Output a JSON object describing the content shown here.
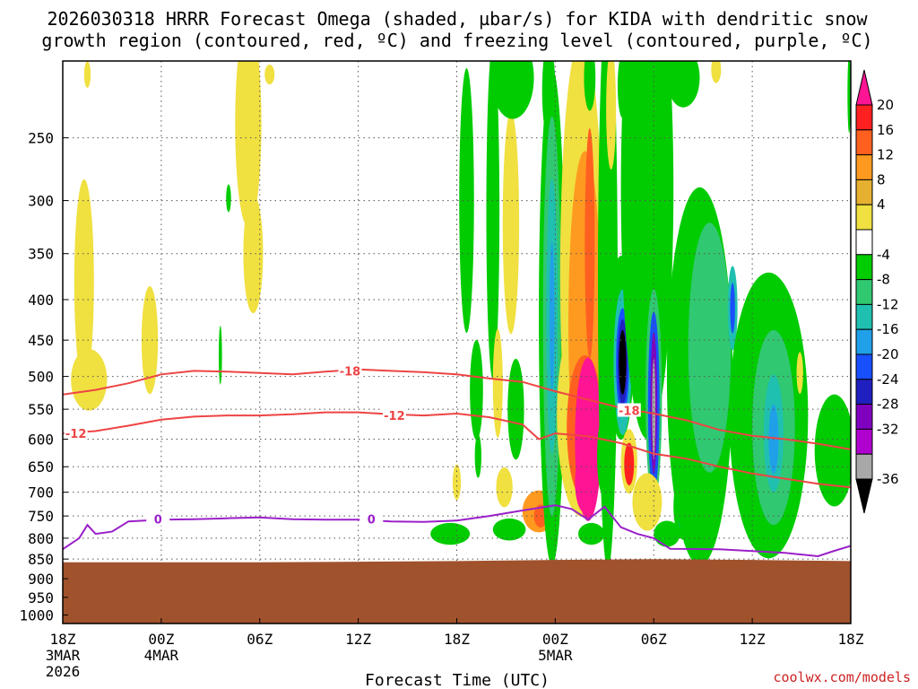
{
  "chart_data": {
    "type": "heatmap",
    "title_line1": "2026030318 HRRR Forecast Omega (shaded, µbar/s) for KIDA with dendritic snow",
    "title_line2": "growth region (contoured, red, ºC) and freezing level (contoured, purple, ºC)",
    "xlabel": "Forecast Time (UTC)",
    "credit": "coolwx.com/models",
    "x_ticks": [
      {
        "hour": 0,
        "label": "18Z",
        "sub1": "3MAR",
        "sub2": "2026"
      },
      {
        "hour": 6,
        "label": "00Z",
        "sub1": "4MAR",
        "sub2": ""
      },
      {
        "hour": 12,
        "label": "06Z",
        "sub1": "",
        "sub2": ""
      },
      {
        "hour": 18,
        "label": "12Z",
        "sub1": "",
        "sub2": ""
      },
      {
        "hour": 24,
        "label": "18Z",
        "sub1": "",
        "sub2": ""
      },
      {
        "hour": 30,
        "label": "00Z",
        "sub1": "5MAR",
        "sub2": ""
      },
      {
        "hour": 36,
        "label": "06Z",
        "sub1": "",
        "sub2": ""
      },
      {
        "hour": 42,
        "label": "12Z",
        "sub1": "",
        "sub2": ""
      },
      {
        "hour": 48,
        "label": "18Z",
        "sub1": "",
        "sub2": ""
      }
    ],
    "x_range_hours": [
      0,
      48
    ],
    "y_ticks": [
      "250",
      "300",
      "350",
      "400",
      "450",
      "500",
      "550",
      "600",
      "650",
      "700",
      "750",
      "800",
      "850",
      "900",
      "950",
      "1000"
    ],
    "y_range_hpa": [
      200,
      1025
    ],
    "y_scale": "log-pressure",
    "grid": true,
    "colorbar": {
      "labels": [
        "20",
        "16",
        "12",
        "8",
        "4",
        "-4",
        "-8",
        "-12",
        "-16",
        "-20",
        "-24",
        "-28",
        "-32",
        "-36"
      ],
      "colors": [
        "#ff1493",
        "#ff2020",
        "#ff6020",
        "#ff9a20",
        "#e6b030",
        "#f0e040",
        "#ffffff",
        "#00cc00",
        "#30c870",
        "#20c0b0",
        "#20a0e8",
        "#1850ff",
        "#2020c0",
        "#8000c0",
        "#b000d0",
        "#a8a8a8",
        "#000000"
      ]
    },
    "series": [
      {
        "name": "-18",
        "color": "#ee4444",
        "points": [
          [
            0,
            527
          ],
          [
            2,
            520
          ],
          [
            4,
            510
          ],
          [
            6,
            497
          ],
          [
            8,
            492
          ],
          [
            10,
            493
          ],
          [
            12,
            495
          ],
          [
            14,
            497
          ],
          [
            16,
            493
          ],
          [
            18,
            490
          ],
          [
            20,
            492
          ],
          [
            22,
            494
          ],
          [
            24,
            497
          ],
          [
            26,
            503
          ],
          [
            28,
            508
          ],
          [
            30,
            522
          ],
          [
            32,
            535
          ],
          [
            34,
            548
          ],
          [
            36,
            557
          ],
          [
            38,
            568
          ],
          [
            40,
            584
          ],
          [
            42,
            594
          ],
          [
            44,
            600
          ],
          [
            46,
            608
          ],
          [
            48,
            618
          ]
        ]
      },
      {
        "name": "-12",
        "color": "#ee4444",
        "points": [
          [
            0,
            590
          ],
          [
            2,
            586
          ],
          [
            4,
            577
          ],
          [
            6,
            567
          ],
          [
            8,
            562
          ],
          [
            10,
            560
          ],
          [
            12,
            560
          ],
          [
            14,
            558
          ],
          [
            16,
            555
          ],
          [
            18,
            555
          ],
          [
            20,
            558
          ],
          [
            22,
            560
          ],
          [
            24,
            557
          ],
          [
            26,
            563
          ],
          [
            28,
            575
          ],
          [
            29,
            600
          ],
          [
            30,
            590
          ],
          [
            32,
            595
          ],
          [
            34,
            607
          ],
          [
            36,
            626
          ],
          [
            38,
            635
          ],
          [
            40,
            650
          ],
          [
            42,
            663
          ],
          [
            44,
            673
          ],
          [
            46,
            683
          ],
          [
            48,
            690
          ]
        ]
      },
      {
        "name": "0",
        "color": "#9a20c8",
        "points": [
          [
            0,
            826
          ],
          [
            1,
            800
          ],
          [
            1.5,
            770
          ],
          [
            2,
            790
          ],
          [
            3,
            785
          ],
          [
            4,
            762
          ],
          [
            6,
            758
          ],
          [
            8,
            757
          ],
          [
            10,
            755
          ],
          [
            12,
            753
          ],
          [
            14,
            757
          ],
          [
            16,
            758
          ],
          [
            18,
            758
          ],
          [
            20,
            762
          ],
          [
            22,
            763
          ],
          [
            24,
            760
          ],
          [
            26,
            750
          ],
          [
            28,
            738
          ],
          [
            30,
            727
          ],
          [
            31,
            735
          ],
          [
            32,
            758
          ],
          [
            33,
            730
          ],
          [
            34,
            775
          ],
          [
            35,
            790
          ],
          [
            36,
            800
          ],
          [
            37,
            825
          ],
          [
            40,
            826
          ],
          [
            44,
            835
          ],
          [
            46,
            843
          ],
          [
            47,
            830
          ],
          [
            48,
            818
          ]
        ]
      }
    ],
    "series_labels": [
      {
        "text": "-18",
        "hour": 17.5,
        "hpa": 492
      },
      {
        "text": "-18",
        "hour": 34.5,
        "hpa": 552
      },
      {
        "text": "-12",
        "hour": 0.8,
        "hpa": 590
      },
      {
        "text": "-12",
        "hour": 20.2,
        "hpa": 560
      },
      {
        "text": "0",
        "hour": 5.8,
        "hpa": 757
      },
      {
        "text": "0",
        "hour": 18.8,
        "hpa": 757
      }
    ],
    "terrain": {
      "color": "#a0522d",
      "surface_hpa": [
        [
          0,
          858
        ],
        [
          12,
          858
        ],
        [
          24,
          855
        ],
        [
          30,
          852
        ],
        [
          36,
          850
        ],
        [
          42,
          852
        ],
        [
          48,
          855
        ]
      ]
    },
    "omega_blobs": [
      {
        "hour": 1.3,
        "hpa": 380,
        "rx": 0.6,
        "ry": 110,
        "value": 5
      },
      {
        "hour": 1.6,
        "hpa": 505,
        "rx": 1.1,
        "ry": 45,
        "value": 5
      },
      {
        "hour": 5.3,
        "hpa": 450,
        "rx": 0.5,
        "ry": 70,
        "value": 5
      },
      {
        "hour": 9.6,
        "hpa": 470,
        "rx": 0.1,
        "ry": 40,
        "value": -6
      },
      {
        "hour": 11.3,
        "hpa": 240,
        "rx": 0.8,
        "ry": 70,
        "value": 5
      },
      {
        "hour": 11.6,
        "hpa": 350,
        "rx": 0.6,
        "ry": 60,
        "value": 5
      },
      {
        "hour": 10.1,
        "hpa": 298,
        "rx": 0.15,
        "ry": 12,
        "value": -6
      },
      {
        "hour": 12.6,
        "hpa": 208,
        "rx": 0.3,
        "ry": 6,
        "value": 5
      },
      {
        "hour": 1.5,
        "hpa": 208,
        "rx": 0.2,
        "ry": 8,
        "value": 5
      },
      {
        "hour": 24.6,
        "hpa": 300,
        "rx": 0.45,
        "ry": 110,
        "value": -6
      },
      {
        "hour": 25.2,
        "hpa": 520,
        "rx": 0.4,
        "ry": 75,
        "value": -6
      },
      {
        "hour": 24.0,
        "hpa": 680,
        "rx": 0.25,
        "ry": 35,
        "value": 5
      },
      {
        "hour": 25.3,
        "hpa": 630,
        "rx": 0.2,
        "ry": 40,
        "value": -6
      },
      {
        "hour": 26.2,
        "hpa": 310,
        "rx": 0.4,
        "ry": 140,
        "value": -6
      },
      {
        "hour": 26.9,
        "hpa": 690,
        "rx": 0.5,
        "ry": 40,
        "value": 5
      },
      {
        "hour": 26.5,
        "hpa": 510,
        "rx": 0.3,
        "ry": 80,
        "value": 5
      },
      {
        "hour": 27.3,
        "hpa": 320,
        "rx": 0.5,
        "ry": 100,
        "value": 5
      },
      {
        "hour": 27.6,
        "hpa": 550,
        "rx": 0.5,
        "ry": 80,
        "value": -6
      },
      {
        "hour": 29.0,
        "hpa": 740,
        "rx": 1.0,
        "ry": 45,
        "value": 10
      },
      {
        "hour": 29.1,
        "hpa": 750,
        "rx": 0.4,
        "ry": 25,
        "value": 14
      },
      {
        "hour": 27.2,
        "hpa": 780,
        "rx": 1.0,
        "ry": 25,
        "value": -6
      },
      {
        "hour": 23.6,
        "hpa": 790,
        "rx": 1.2,
        "ry": 25,
        "value": -6
      },
      {
        "hour": 32.2,
        "hpa": 790,
        "rx": 0.8,
        "ry": 25,
        "value": -6
      },
      {
        "hour": 29.6,
        "hpa": 218,
        "rx": 0.4,
        "ry": 30,
        "value": -6
      },
      {
        "hour": 29.8,
        "hpa": 420,
        "rx": 0.8,
        "ry": 260,
        "value": -6
      },
      {
        "hour": 29.8,
        "hpa": 420,
        "rx": 0.55,
        "ry": 220,
        "value": -10
      },
      {
        "hour": 29.8,
        "hpa": 420,
        "rx": 0.35,
        "ry": 160,
        "value": -14
      },
      {
        "hour": 29.8,
        "hpa": 420,
        "rx": 0.15,
        "ry": 90,
        "value": -18
      },
      {
        "hour": 31.6,
        "hpa": 370,
        "rx": 1.3,
        "ry": 220,
        "value": 5
      },
      {
        "hour": 31.6,
        "hpa": 560,
        "rx": 1.5,
        "ry": 160,
        "value": 5
      },
      {
        "hour": 31.8,
        "hpa": 430,
        "rx": 1.0,
        "ry": 200,
        "value": 9
      },
      {
        "hour": 31.8,
        "hpa": 580,
        "rx": 1.1,
        "ry": 120,
        "value": 13
      },
      {
        "hour": 32.0,
        "hpa": 600,
        "rx": 0.8,
        "ry": 140,
        "value": 21
      },
      {
        "hour": 32.1,
        "hpa": 340,
        "rx": 0.3,
        "ry": 110,
        "value": 14
      },
      {
        "hour": 31.8,
        "hpa": 680,
        "rx": 0.6,
        "ry": 60,
        "value": 21
      },
      {
        "hour": 32.9,
        "hpa": 630,
        "rx": 0.35,
        "ry": 70,
        "value": -6
      },
      {
        "hour": 33.2,
        "hpa": 380,
        "rx": 0.6,
        "ry": 260,
        "value": -6
      },
      {
        "hour": 34.0,
        "hpa": 460,
        "rx": 0.8,
        "ry": 120,
        "value": -6
      },
      {
        "hour": 34.1,
        "hpa": 480,
        "rx": 0.55,
        "ry": 100,
        "value": -14
      },
      {
        "hour": 34.1,
        "hpa": 480,
        "rx": 0.4,
        "ry": 75,
        "value": -22
      },
      {
        "hour": 34.1,
        "hpa": 480,
        "rx": 0.3,
        "ry": 60,
        "value": -27
      },
      {
        "hour": 34.1,
        "hpa": 480,
        "rx": 0.22,
        "ry": 45,
        "value": -40
      },
      {
        "hour": 34.5,
        "hpa": 640,
        "rx": 0.5,
        "ry": 60,
        "value": 5
      },
      {
        "hour": 34.5,
        "hpa": 645,
        "rx": 0.3,
        "ry": 40,
        "value": 18
      },
      {
        "hour": 35.3,
        "hpa": 300,
        "rx": 1.1,
        "ry": 130,
        "value": 5
      },
      {
        "hour": 35.3,
        "hpa": 330,
        "rx": 0.6,
        "ry": 110,
        "value": 10
      },
      {
        "hour": 35.1,
        "hpa": 360,
        "rx": 0.3,
        "ry": 80,
        "value": 21
      },
      {
        "hour": 35.6,
        "hpa": 290,
        "rx": 1.6,
        "ry": 180,
        "value": -6
      },
      {
        "hour": 36.0,
        "hpa": 530,
        "rx": 0.5,
        "ry": 160,
        "value": -10
      },
      {
        "hour": 36.0,
        "hpa": 540,
        "rx": 0.35,
        "ry": 140,
        "value": -20
      },
      {
        "hour": 36.0,
        "hpa": 540,
        "rx": 0.2,
        "ry": 110,
        "value": -29
      },
      {
        "hour": 36.0,
        "hpa": 550,
        "rx": 0.1,
        "ry": 80,
        "value": -33
      },
      {
        "hour": 35.6,
        "hpa": 720,
        "rx": 0.9,
        "ry": 60,
        "value": 5
      },
      {
        "hour": 37.8,
        "hpa": 730,
        "rx": 0.6,
        "ry": 70,
        "value": -6
      },
      {
        "hour": 37.8,
        "hpa": 735,
        "rx": 0.35,
        "ry": 50,
        "value": -18
      },
      {
        "hour": 37.8,
        "hpa": 740,
        "rx": 0.15,
        "ry": 30,
        "value": -28
      },
      {
        "hour": 36.8,
        "hpa": 790,
        "rx": 0.8,
        "ry": 30,
        "value": -6
      },
      {
        "hour": 38.8,
        "hpa": 500,
        "rx": 2.0,
        "ry": 250,
        "value": -6
      },
      {
        "hour": 39.4,
        "hpa": 460,
        "rx": 1.3,
        "ry": 160,
        "value": -10
      },
      {
        "hour": 40.8,
        "hpa": 410,
        "rx": 0.3,
        "ry": 50,
        "value": -14
      },
      {
        "hour": 40.8,
        "hpa": 410,
        "rx": 0.15,
        "ry": 30,
        "value": -22
      },
      {
        "hour": 43.0,
        "hpa": 560,
        "rx": 2.4,
        "ry": 220,
        "value": -6
      },
      {
        "hour": 43.3,
        "hpa": 580,
        "rx": 1.3,
        "ry": 160,
        "value": -10
      },
      {
        "hour": 43.3,
        "hpa": 590,
        "rx": 0.6,
        "ry": 100,
        "value": -14
      },
      {
        "hour": 43.3,
        "hpa": 600,
        "rx": 0.3,
        "ry": 60,
        "value": -18
      },
      {
        "hour": 47.0,
        "hpa": 620,
        "rx": 1.2,
        "ry": 100,
        "value": -6
      },
      {
        "hour": 44.9,
        "hpa": 495,
        "rx": 0.2,
        "ry": 30,
        "value": 5
      },
      {
        "hour": 27.4,
        "hpa": 210,
        "rx": 1.3,
        "ry": 25,
        "value": -6
      },
      {
        "hour": 32.1,
        "hpa": 210,
        "rx": 0.35,
        "ry": 20,
        "value": -6
      },
      {
        "hour": 33.4,
        "hpa": 230,
        "rx": 0.3,
        "ry": 40,
        "value": 5
      },
      {
        "hour": 34.1,
        "hpa": 215,
        "rx": 0.3,
        "ry": 20,
        "value": -6
      },
      {
        "hour": 37.8,
        "hpa": 210,
        "rx": 1.0,
        "ry": 18,
        "value": -6
      },
      {
        "hour": 39.8,
        "hpa": 205,
        "rx": 0.3,
        "ry": 8,
        "value": 5
      },
      {
        "hour": 47.9,
        "hpa": 220,
        "rx": 0.1,
        "ry": 25,
        "value": -6
      }
    ]
  }
}
